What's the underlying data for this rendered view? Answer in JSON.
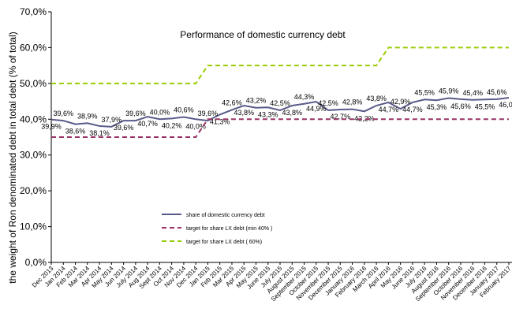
{
  "chart_data": {
    "type": "line",
    "title": "Performance of domestic currency debt",
    "y_label": "the weight of Ron denominated debt in total debt (% of total)",
    "categories": [
      "Dec 2013",
      "Jan 2014",
      "Feb 2014",
      "Mar 2014",
      "Apr 2014",
      "May 2014",
      "Jun 2014",
      "July 2014",
      "Aug 2014",
      "Sept 2014",
      "Oct 2014",
      "Nov 2014",
      "Dec 2014",
      "Jan 2015",
      "Feb 2015",
      "Mar 2015",
      "Apr 2015",
      "May 2015",
      "June 2015",
      "July 2015",
      "August 2015",
      "September 2015",
      "October 2015",
      "November 2015",
      "December 2015",
      "January 2016",
      "February 2016",
      "March 2016",
      "April 2016",
      "May 2016",
      "June 2016",
      "July 2016",
      "August 2016",
      "September 2016",
      "October 2016",
      "November 2016",
      "December 2016",
      "January 2017",
      "February 2017"
    ],
    "series": [
      {
        "name": "share of domestic currency debt",
        "color": "#5a5a8a",
        "dash": false,
        "labels": true,
        "values": [
          39.9,
          39.6,
          38.6,
          38.9,
          38.1,
          37.9,
          39.6,
          39.6,
          40.7,
          40.0,
          40.2,
          40.6,
          40.0,
          39.6,
          41.3,
          42.6,
          43.8,
          43.2,
          43.3,
          42.5,
          43.8,
          44.3,
          44.9,
          42.5,
          42.7,
          42.8,
          42.2,
          43.8,
          44.7,
          42.9,
          44.7,
          45.5,
          45.3,
          45.9,
          45.6,
          45.4,
          45.5,
          45.6,
          46.0
        ],
        "value_labels": [
          "39,9%",
          "39,6%",
          "38,6%",
          "38,9%",
          "38,1%",
          "37,9%",
          "39,6%",
          "39,6%",
          "40,7%",
          "40,0%",
          "40,2%",
          "40,6%",
          "40,0%",
          "39,6%",
          "41,3%",
          "42,6%",
          "43,8%",
          "43,2%",
          "43,3%",
          "42,5%",
          "43,8%",
          "44,3%",
          "44,9%",
          "42,5%",
          "42,7%",
          "42,8%",
          "42,2%",
          "43,8%",
          "44,7%",
          "42,9%",
          "44,7%",
          "45,5%",
          "45,3%",
          "45,9%",
          "45,6%",
          "45,4%",
          "45,5%",
          "45,6%",
          "46,0%"
        ]
      },
      {
        "name": "target for share LX debt (min 40% )",
        "color": "#993366",
        "dash": true,
        "labels": false,
        "values": [
          35,
          35,
          35,
          35,
          35,
          35,
          35,
          35,
          35,
          35,
          35,
          35,
          35,
          40,
          40,
          40,
          40,
          40,
          40,
          40,
          40,
          40,
          40,
          40,
          40,
          40,
          40,
          40,
          40,
          40,
          40,
          40,
          40,
          40,
          40,
          40,
          40,
          40,
          40
        ]
      },
      {
        "name": "target for share LX debt ( 60%)",
        "color": "#99cc00",
        "dash": true,
        "labels": false,
        "values": [
          50,
          50,
          50,
          50,
          50,
          50,
          50,
          50,
          50,
          50,
          50,
          50,
          50,
          55,
          55,
          55,
          55,
          55,
          55,
          55,
          55,
          55,
          55,
          55,
          55,
          55,
          55,
          55,
          60,
          60,
          60,
          60,
          60,
          60,
          60,
          60,
          60,
          60,
          60
        ]
      }
    ],
    "ylim": [
      0,
      70
    ],
    "yticks": [
      {
        "value": 0,
        "label": "0,0%"
      },
      {
        "value": 10,
        "label": "10,0%"
      },
      {
        "value": 20,
        "label": "20,0%"
      },
      {
        "value": 30,
        "label": "30,0%"
      },
      {
        "value": 40,
        "label": "40,0%"
      },
      {
        "value": 50,
        "label": "50,0%"
      },
      {
        "value": 60,
        "label": "60,0%"
      },
      {
        "value": 70,
        "label": "70,0%"
      }
    ],
    "legend": "lower-left"
  }
}
